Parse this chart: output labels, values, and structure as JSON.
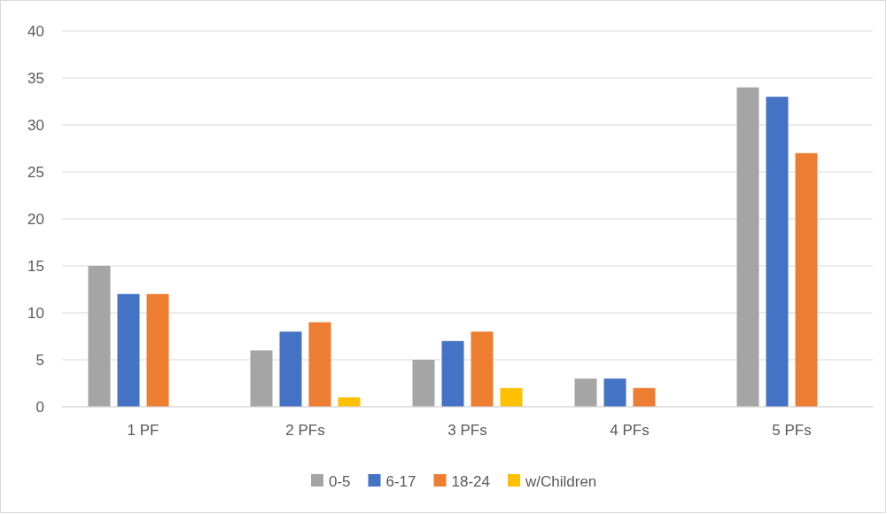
{
  "chart_data": {
    "type": "bar",
    "categories": [
      "1 PF",
      "2 PFs",
      "3 PFs",
      "4 PFs",
      "5 PFs"
    ],
    "series": [
      {
        "name": "0-5",
        "color": "#a5a5a5",
        "values": [
          15,
          6,
          5,
          3,
          34
        ]
      },
      {
        "name": "6-17",
        "color": "#4472c4",
        "values": [
          12,
          8,
          7,
          3,
          33
        ]
      },
      {
        "name": "18-24",
        "color": "#ed7d31",
        "values": [
          12,
          9,
          8,
          2,
          27
        ]
      },
      {
        "name": "w/Children",
        "color": "#ffc000",
        "values": [
          null,
          1,
          2,
          null,
          null
        ]
      }
    ],
    "ylim": [
      0,
      40
    ],
    "yticks": [
      0,
      5,
      10,
      15,
      20,
      25,
      30,
      35,
      40
    ],
    "grid": "y",
    "legend": "bottom"
  }
}
